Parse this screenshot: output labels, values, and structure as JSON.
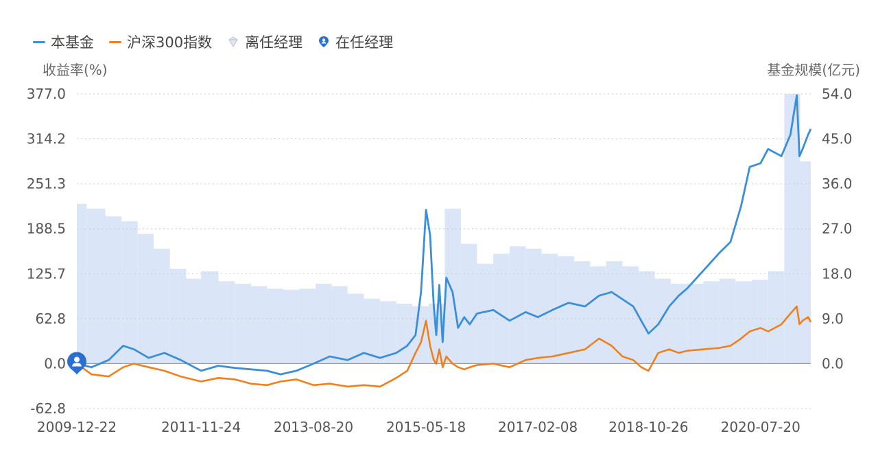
{
  "legend": {
    "fund": "本基金",
    "index": "沪深300指数",
    "departed": "离任经理",
    "current": "在任经理"
  },
  "colors": {
    "fund": "#3b8fd9",
    "index": "#f07f1c",
    "scale_fill": "#dae6f8",
    "grid": "#cccccc",
    "current_marker": "#2a6fd1"
  },
  "chart_data": {
    "type": "line",
    "ylabel": "收益率(%)",
    "y2label": "基金规模(亿元)",
    "x_ticks": [
      "2009-12-22",
      "2011-11-24",
      "2013-08-20",
      "2015-05-18",
      "2017-02-08",
      "2018-10-26",
      "2020-07-20"
    ],
    "y_ticks": [
      "377.0",
      "314.2",
      "251.3",
      "188.5",
      "125.7",
      "62.8",
      "0.0",
      "-62.8"
    ],
    "y2_ticks": [
      "54.0",
      "45.0",
      "36.0",
      "27.0",
      "18.0",
      "9.0",
      "0.0"
    ],
    "ylim": [
      -62.8,
      377.0
    ],
    "y2lim": [
      -9.0,
      54.0
    ],
    "xlim": [
      "2009-12-22",
      "2021-04-30"
    ],
    "grid": true,
    "legend_position": "top-left",
    "series": [
      {
        "name": "本基金",
        "x": [
          "2009-12-22",
          "2010-03-15",
          "2010-06-20",
          "2010-09-10",
          "2010-11-10",
          "2011-02-01",
          "2011-05-01",
          "2011-08-01",
          "2011-11-24",
          "2012-03-01",
          "2012-06-01",
          "2012-09-01",
          "2012-12-01",
          "2013-02-15",
          "2013-05-15",
          "2013-08-20",
          "2013-11-20",
          "2014-03-01",
          "2014-06-01",
          "2014-09-01",
          "2014-12-01",
          "2015-02-01",
          "2015-03-20",
          "2015-04-20",
          "2015-05-18",
          "2015-06-10",
          "2015-07-01",
          "2015-07-15",
          "2015-08-01",
          "2015-08-20",
          "2015-09-10",
          "2015-10-15",
          "2015-11-15",
          "2015-12-20",
          "2016-01-20",
          "2016-03-01",
          "2016-06-01",
          "2016-09-01",
          "2016-12-01",
          "2017-02-08",
          "2017-05-01",
          "2017-08-01",
          "2017-11-01",
          "2018-01-20",
          "2018-04-01",
          "2018-06-01",
          "2018-08-01",
          "2018-09-15",
          "2018-10-26",
          "2018-12-20",
          "2019-02-20",
          "2019-04-15",
          "2019-06-01",
          "2019-09-01",
          "2019-12-01",
          "2020-02-01",
          "2020-04-01",
          "2020-05-20",
          "2020-07-20",
          "2020-09-01",
          "2020-11-15",
          "2021-01-05",
          "2021-02-10",
          "2021-02-25",
          "2021-03-15",
          "2021-04-15",
          "2021-04-30"
        ],
        "y": [
          0,
          -5,
          5,
          25,
          20,
          8,
          15,
          5,
          -10,
          -3,
          -6,
          -8,
          -10,
          -15,
          -10,
          0,
          10,
          5,
          15,
          8,
          15,
          25,
          40,
          100,
          215,
          180,
          80,
          40,
          110,
          30,
          120,
          100,
          50,
          65,
          55,
          70,
          75,
          60,
          72,
          65,
          75,
          85,
          80,
          95,
          100,
          90,
          80,
          60,
          42,
          55,
          80,
          95,
          105,
          130,
          155,
          170,
          220,
          275,
          280,
          300,
          290,
          320,
          375,
          290,
          300,
          320,
          328
        ]
      },
      {
        "name": "沪深300指数",
        "x": [
          "2009-12-22",
          "2010-03-15",
          "2010-06-20",
          "2010-09-10",
          "2010-11-10",
          "2011-02-01",
          "2011-05-01",
          "2011-08-01",
          "2011-11-24",
          "2012-03-01",
          "2012-06-01",
          "2012-09-01",
          "2012-12-01",
          "2013-02-15",
          "2013-05-15",
          "2013-08-20",
          "2013-11-20",
          "2014-03-01",
          "2014-06-01",
          "2014-09-01",
          "2014-12-01",
          "2015-02-01",
          "2015-03-20",
          "2015-04-20",
          "2015-05-18",
          "2015-06-10",
          "2015-07-01",
          "2015-07-15",
          "2015-08-01",
          "2015-08-20",
          "2015-09-10",
          "2015-10-15",
          "2015-11-15",
          "2015-12-20",
          "2016-01-20",
          "2016-03-01",
          "2016-06-01",
          "2016-09-01",
          "2016-12-01",
          "2017-02-08",
          "2017-05-01",
          "2017-08-01",
          "2017-11-01",
          "2018-01-20",
          "2018-04-01",
          "2018-06-01",
          "2018-08-01",
          "2018-09-15",
          "2018-10-26",
          "2018-12-20",
          "2019-02-20",
          "2019-04-15",
          "2019-06-01",
          "2019-09-01",
          "2019-12-01",
          "2020-02-01",
          "2020-04-01",
          "2020-05-20",
          "2020-07-20",
          "2020-09-01",
          "2020-11-15",
          "2021-01-05",
          "2021-02-10",
          "2021-02-25",
          "2021-03-15",
          "2021-04-15",
          "2021-04-30"
        ],
        "y": [
          0,
          -15,
          -18,
          -5,
          0,
          -5,
          -10,
          -18,
          -25,
          -20,
          -22,
          -28,
          -30,
          -25,
          -22,
          -30,
          -28,
          -32,
          -30,
          -32,
          -20,
          -10,
          15,
          30,
          60,
          25,
          5,
          0,
          20,
          -5,
          10,
          0,
          -5,
          -8,
          -5,
          -2,
          0,
          -5,
          5,
          8,
          10,
          15,
          20,
          35,
          25,
          10,
          5,
          -5,
          -10,
          15,
          20,
          15,
          18,
          20,
          22,
          25,
          35,
          45,
          50,
          45,
          55,
          70,
          80,
          55,
          60,
          65,
          58
        ]
      },
      {
        "name": "基金规模",
        "type": "step-area",
        "axis": "right",
        "x": [
          "2009-12-22",
          "2010-02-15",
          "2010-06-01",
          "2010-09-01",
          "2010-12-01",
          "2011-03-01",
          "2011-06-01",
          "2011-09-01",
          "2011-11-24",
          "2012-03-01",
          "2012-06-01",
          "2012-09-01",
          "2012-12-01",
          "2013-03-01",
          "2013-06-01",
          "2013-09-01",
          "2013-12-01",
          "2014-03-01",
          "2014-06-01",
          "2014-09-01",
          "2014-12-01",
          "2015-03-01",
          "2015-06-01",
          "2015-09-01",
          "2015-12-01",
          "2016-03-01",
          "2016-06-01",
          "2016-09-01",
          "2016-12-01",
          "2017-03-01",
          "2017-06-01",
          "2017-09-01",
          "2017-12-01",
          "2018-03-01",
          "2018-06-01",
          "2018-09-01",
          "2018-12-01",
          "2019-03-01",
          "2019-06-01",
          "2019-09-01",
          "2019-12-01",
          "2020-03-01",
          "2020-06-01",
          "2020-09-01",
          "2020-12-01",
          "2021-03-01",
          "2021-04-30"
        ],
        "y": [
          32,
          31,
          29.5,
          28.5,
          26,
          23,
          19,
          17,
          18.5,
          16.5,
          16,
          15.5,
          15,
          14.8,
          15,
          16,
          15.5,
          14,
          13,
          12.5,
          12,
          11.5,
          12,
          31,
          24,
          20,
          22,
          23.5,
          23,
          22,
          21.5,
          20.5,
          19.5,
          20.5,
          19.5,
          18.5,
          17,
          16,
          16,
          16.5,
          17,
          16.5,
          16.8,
          18.5,
          55,
          40.5,
          23.5
        ]
      }
    ]
  }
}
